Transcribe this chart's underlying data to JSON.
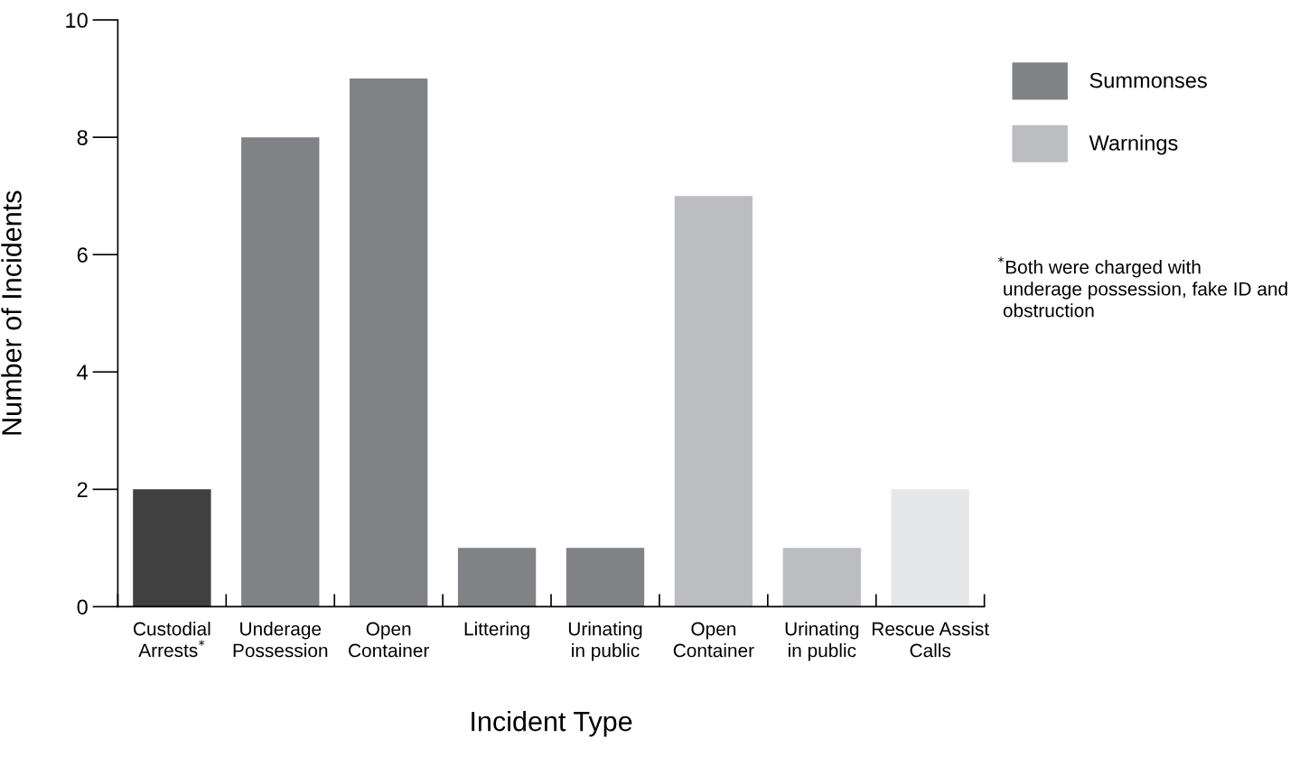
{
  "chart_data": {
    "type": "bar",
    "xlabel": "Incident Type",
    "ylabel": "Number of Incidents",
    "categories": [
      "Custodial\nArrests$^{*}$",
      "Underage\nPossession",
      "Open\nContainer",
      "Littering",
      "Urinating\nin public",
      "Open\nContainer",
      "Urinating\nin public",
      "Rescue Assist\nCalls"
    ],
    "series": [
      {
        "color": "#404040",
        "values": [
          2,
          null,
          null,
          null,
          null,
          null,
          null,
          null
        ]
      },
      {
        "name": "Summonses",
        "color": "#808285",
        "values": [
          null,
          8,
          9,
          1,
          1,
          null,
          null,
          null
        ]
      },
      {
        "name": "Warnings",
        "color": "#bcbdc0",
        "values": [
          null,
          null,
          null,
          null,
          null,
          7,
          1,
          null
        ]
      },
      {
        "color": "#e6e7e8",
        "values": [
          null,
          null,
          null,
          null,
          null,
          null,
          null,
          2
        ]
      }
    ],
    "ylim": [
      0,
      10
    ],
    "yticks": [
      0,
      2,
      4,
      6,
      8,
      10
    ],
    "grid": false,
    "legend": "top right",
    "annotations": [
      "$^{*}$Both were charged with\n underage possession, fake ID and\n obstruction"
    ]
  }
}
